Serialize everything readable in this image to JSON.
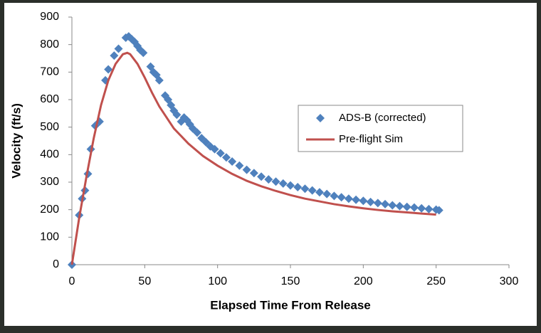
{
  "chart_data": {
    "type": "scatter",
    "x_label": "Elapsed Time From Release",
    "y_label": "Velocity (ft/s)",
    "xlim": [
      0,
      300
    ],
    "xticks": [
      0,
      50,
      100,
      150,
      200,
      250,
      300
    ],
    "ylim": [
      0,
      900
    ],
    "yticks": [
      0,
      100,
      200,
      300,
      400,
      500,
      600,
      700,
      800,
      900
    ],
    "grid": false,
    "legend": "right",
    "series": [
      {
        "name": "ADS-B (corrected)",
        "color": "#4f81bd",
        "type": "scatter",
        "x": [
          0,
          5,
          7,
          9,
          11,
          13,
          16,
          19,
          23,
          25,
          29,
          32,
          37,
          39,
          41,
          43,
          45,
          47,
          49,
          54,
          56,
          58,
          60,
          64,
          66,
          68,
          70,
          72,
          75,
          77,
          79,
          81,
          83,
          86,
          89,
          92,
          95,
          98,
          102,
          106,
          110,
          115,
          120,
          125,
          130,
          135,
          140,
          145,
          150,
          155,
          160,
          165,
          170,
          175,
          180,
          185,
          190,
          195,
          200,
          205,
          210,
          215,
          220,
          225,
          230,
          235,
          240,
          245,
          250,
          252
        ],
        "values": [
          0,
          180,
          240,
          270,
          330,
          420,
          505,
          520,
          670,
          710,
          760,
          785,
          825,
          830,
          820,
          810,
          795,
          780,
          770,
          720,
          700,
          690,
          670,
          615,
          600,
          580,
          560,
          545,
          520,
          535,
          525,
          510,
          495,
          480,
          460,
          445,
          430,
          420,
          405,
          390,
          375,
          360,
          345,
          333,
          320,
          310,
          302,
          295,
          288,
          282,
          276,
          270,
          263,
          257,
          250,
          245,
          240,
          236,
          232,
          228,
          224,
          220,
          216,
          213,
          210,
          208,
          205,
          202,
          200,
          198
        ]
      },
      {
        "name": "Pre-flight Sim",
        "color": "#c0504d",
        "type": "line",
        "x": [
          0,
          5,
          10,
          15,
          20,
          25,
          30,
          35,
          38,
          40,
          45,
          50,
          55,
          60,
          70,
          80,
          90,
          100,
          110,
          120,
          130,
          140,
          150,
          160,
          170,
          180,
          190,
          200,
          210,
          220,
          230,
          240,
          250
        ],
        "values": [
          0,
          170,
          320,
          460,
          580,
          670,
          730,
          765,
          770,
          765,
          730,
          680,
          625,
          575,
          495,
          440,
          395,
          360,
          330,
          305,
          285,
          268,
          253,
          240,
          230,
          220,
          212,
          205,
          199,
          194,
          190,
          186,
          182
        ]
      }
    ]
  }
}
